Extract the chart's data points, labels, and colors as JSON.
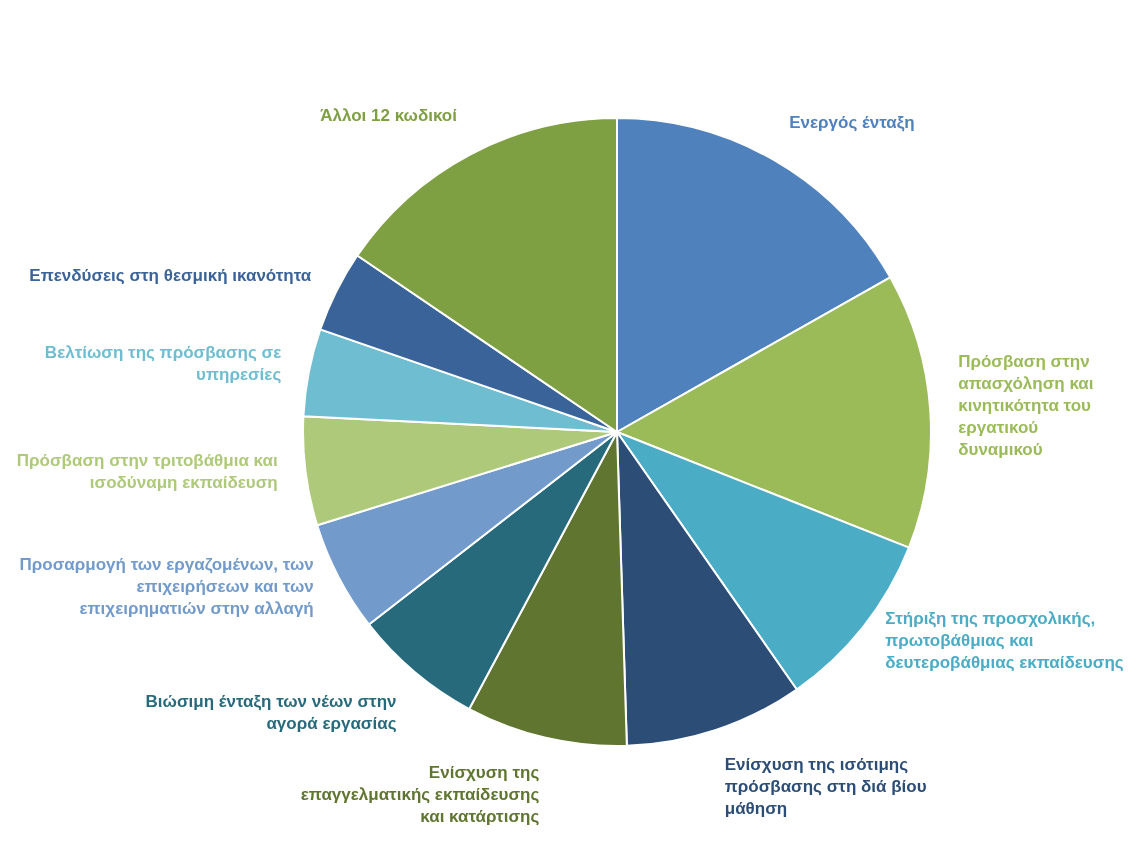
{
  "chart_data": {
    "type": "pie",
    "categories": [
      "Ενεργός ένταξη",
      "Πρόσβαση στην απασχόληση και κινητικότητα του εργατικού δυναμικού",
      "Στήριξη της προσχολικής, πρωτοβάθμιας και δευτεροβάθμιας εκπαίδευσης",
      "Ενίσχυση της ισότιμης πρόσβασης στη διά βίου μάθηση",
      "Ενίσχυση της επαγγελματικής εκπαίδευσης και κατάρτισης",
      "Βιώσιμη ένταξη των νέων στην αγορά εργασίας",
      "Προσαρμογή των εργαζομένων, των επιχειρήσεων και των επιχειρηματιών στην αλλαγή",
      "Πρόσβαση στην τριτοβάθμια και ισοδύναμη εκπαίδευση",
      "Βελτίωση της πρόσβασης σε υπηρεσίες",
      "Επενδύσεις στη θεσμική ικανότητα",
      "Άλλοι 12 κωδικοί"
    ],
    "values": [
      16.8,
      14.2,
      9.3,
      9.2,
      8.3,
      6.7,
      5.7,
      5.6,
      4.5,
      4.2,
      15.5
    ],
    "colors": [
      "#4f81bd",
      "#9bbb59",
      "#4bacc6",
      "#2c4d75",
      "#5f7530",
      "#276a7c",
      "#729aca",
      "#afc97a",
      "#6fbdd1",
      "#3a6399",
      "#7f9f43"
    ],
    "legend": false
  }
}
